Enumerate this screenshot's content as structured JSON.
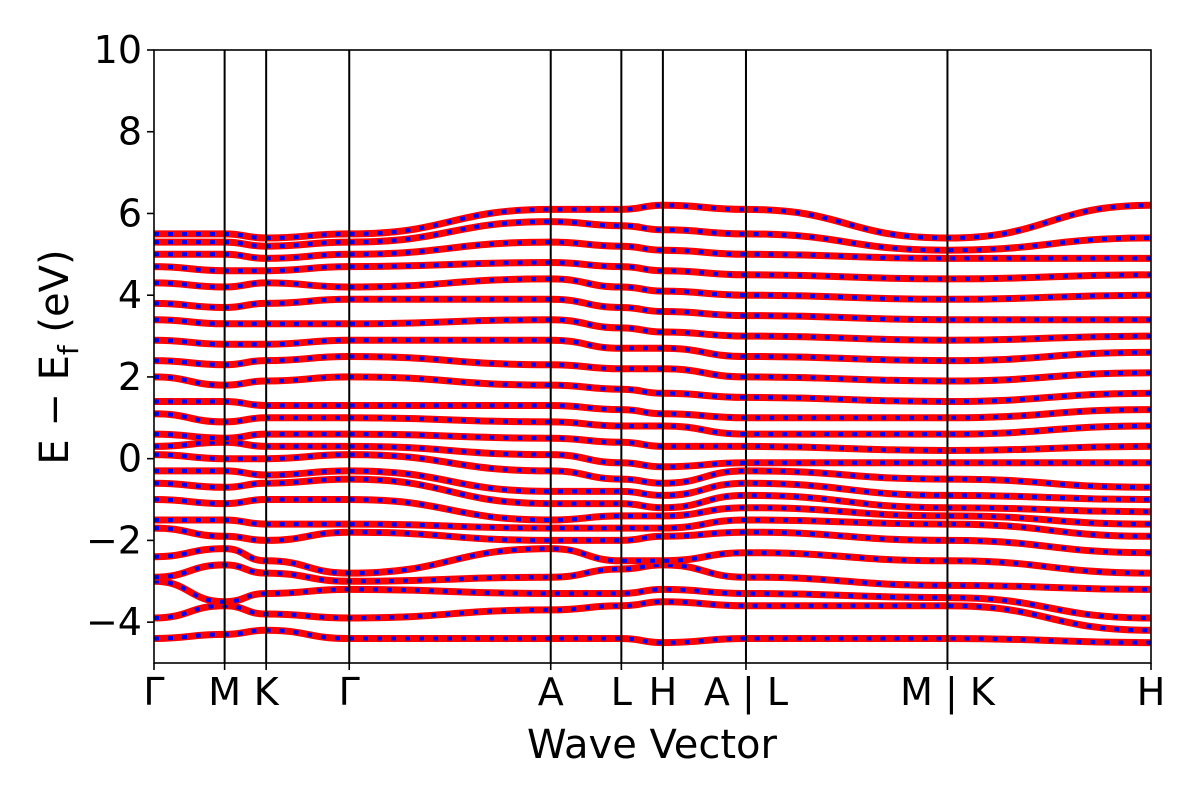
{
  "chart_data": {
    "type": "line",
    "xlabel": "Wave Vector",
    "ylabel": "E − E_f (eV)",
    "ylabel_main": "E − E",
    "ylabel_sub": "f",
    "ylabel_unit": " (eV)",
    "ylim": [
      -5,
      10
    ],
    "yticks": [
      -4,
      -2,
      0,
      2,
      4,
      6,
      8,
      10
    ],
    "ytick_labels": [
      "−4",
      "−2",
      "0",
      "2",
      "4",
      "6",
      "8",
      "10"
    ],
    "grid": false,
    "legend": "none",
    "xlim": [
      0,
      24
    ],
    "kpath_ticks": [
      {
        "label": "Γ",
        "x": 0
      },
      {
        "label": "M",
        "x": 1.7
      },
      {
        "label": "K",
        "x": 2.7
      },
      {
        "label": "Γ",
        "x": 4.7
      },
      {
        "label": "A",
        "x": 9.55
      },
      {
        "label": "L",
        "x": 11.25
      },
      {
        "label": "H",
        "x": 12.25
      },
      {
        "label": "A | L",
        "x": 14.25
      },
      {
        "label": "M | K",
        "x": 19.1
      },
      {
        "label": "H",
        "x": 24
      }
    ],
    "series_colors": {
      "spin_up": "#ff0000",
      "spin_down": "#0000ff"
    },
    "band_energies_at_kpoints": [
      [
        -4.4,
        -4.3,
        -4.2,
        -4.4,
        -4.4,
        -4.4,
        -4.5,
        -4.4,
        -4.4,
        -4.5
      ],
      [
        -3.9,
        -3.6,
        -3.8,
        -3.9,
        -3.7,
        -3.6,
        -3.5,
        -3.6,
        -3.6,
        -4.2
      ],
      [
        -3.0,
        -3.5,
        -3.3,
        -3.2,
        -3.3,
        -3.3,
        -3.2,
        -3.3,
        -3.4,
        -3.9
      ],
      [
        -2.9,
        -2.6,
        -2.8,
        -3.0,
        -2.9,
        -2.7,
        -2.6,
        -2.9,
        -3.1,
        -3.2
      ],
      [
        -2.4,
        -2.2,
        -2.5,
        -2.8,
        -2.2,
        -2.5,
        -2.5,
        -2.3,
        -2.5,
        -2.8
      ],
      [
        -1.7,
        -1.9,
        -2.0,
        -1.8,
        -2.0,
        -2.0,
        -1.9,
        -1.8,
        -2.0,
        -2.3
      ],
      [
        -1.5,
        -1.5,
        -1.6,
        -1.6,
        -1.7,
        -1.7,
        -1.7,
        -1.5,
        -1.6,
        -1.9
      ],
      [
        -1.0,
        -1.1,
        -1.0,
        -1.0,
        -1.5,
        -1.4,
        -1.4,
        -1.2,
        -1.4,
        -1.6
      ],
      [
        -0.6,
        -0.7,
        -0.6,
        -0.5,
        -1.1,
        -1.1,
        -1.2,
        -0.9,
        -1.2,
        -1.3
      ],
      [
        -0.3,
        -0.3,
        -0.4,
        -0.3,
        -0.8,
        -0.8,
        -0.9,
        -0.6,
        -0.9,
        -1.0
      ],
      [
        0.1,
        0.0,
        0.0,
        0.1,
        -0.3,
        -0.5,
        -0.6,
        -0.3,
        -0.5,
        -0.7
      ],
      [
        0.3,
        0.4,
        0.3,
        0.3,
        0.1,
        -0.1,
        -0.2,
        -0.1,
        -0.1,
        -0.1
      ],
      [
        0.6,
        0.5,
        0.6,
        0.6,
        0.5,
        0.4,
        0.3,
        0.3,
        0.2,
        0.3
      ],
      [
        1.1,
        0.9,
        1.0,
        1.0,
        0.9,
        0.8,
        0.8,
        0.6,
        0.6,
        0.8
      ],
      [
        1.4,
        1.4,
        1.3,
        1.3,
        1.3,
        1.2,
        1.1,
        1.0,
        1.0,
        1.2
      ],
      [
        2.0,
        1.8,
        1.9,
        2.0,
        1.8,
        1.7,
        1.6,
        1.5,
        1.4,
        1.6
      ],
      [
        2.4,
        2.3,
        2.4,
        2.5,
        2.3,
        2.2,
        2.2,
        2.0,
        1.9,
        2.1
      ],
      [
        2.9,
        2.8,
        2.8,
        2.9,
        2.9,
        2.7,
        2.7,
        2.5,
        2.4,
        2.6
      ],
      [
        3.4,
        3.3,
        3.3,
        3.3,
        3.4,
        3.2,
        3.1,
        3.0,
        2.9,
        3.0
      ],
      [
        3.8,
        3.7,
        3.8,
        3.9,
        3.9,
        3.7,
        3.6,
        3.5,
        3.4,
        3.4
      ],
      [
        4.3,
        4.2,
        4.3,
        4.2,
        4.4,
        4.2,
        4.1,
        4.0,
        3.9,
        4.0
      ],
      [
        4.7,
        4.6,
        4.6,
        4.7,
        4.8,
        4.7,
        4.6,
        4.5,
        4.4,
        4.5
      ],
      [
        5.0,
        5.0,
        4.9,
        5.0,
        5.3,
        5.2,
        5.1,
        5.0,
        4.9,
        4.9
      ],
      [
        5.3,
        5.3,
        5.2,
        5.3,
        5.8,
        5.7,
        5.6,
        5.5,
        5.1,
        5.4
      ],
      [
        5.5,
        5.5,
        5.4,
        5.5,
        6.1,
        6.1,
        6.2,
        6.1,
        5.4,
        6.2
      ]
    ]
  }
}
